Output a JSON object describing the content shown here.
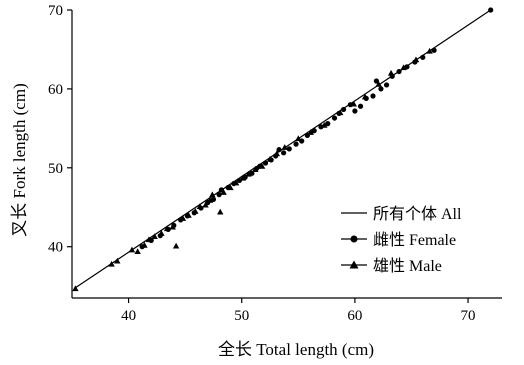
{
  "chart_data": {
    "type": "scatter",
    "title": "",
    "xlabel": "全长 Total length (cm)",
    "ylabel": "叉长 Fork length (cm)",
    "xlim": [
      35,
      73
    ],
    "ylim": [
      33.5,
      70
    ],
    "xticks": [
      40,
      50,
      60,
      70
    ],
    "yticks": [
      40,
      50,
      60,
      70
    ],
    "xtick_labels": [
      "40",
      "50",
      "60",
      "70"
    ],
    "ytick_labels": [
      "40",
      "50",
      "60",
      "70"
    ],
    "grid": false,
    "legend_position": "lower-right",
    "legend": [
      {
        "label": "所有个体 All",
        "marker": "line"
      },
      {
        "label": "雌性 Female",
        "marker": "circle"
      },
      {
        "label": "雄性 Male",
        "marker": "triangle"
      }
    ],
    "fit_line": {
      "name": "所有个体 All",
      "points": [
        [
          35.2,
          34.7
        ],
        [
          72.0,
          70.0
        ]
      ]
    },
    "series": [
      {
        "name": "雌性 Female",
        "marker": "circle",
        "points": [
          [
            41.2,
            40.0
          ],
          [
            42.0,
            40.8
          ],
          [
            42.8,
            41.4
          ],
          [
            43.5,
            42.2
          ],
          [
            44.0,
            42.7
          ],
          [
            44.6,
            43.4
          ],
          [
            45.2,
            43.9
          ],
          [
            45.8,
            44.3
          ],
          [
            46.4,
            44.9
          ],
          [
            47.0,
            45.6
          ],
          [
            47.5,
            46.0
          ],
          [
            48.0,
            46.6
          ],
          [
            48.2,
            47.2
          ],
          [
            48.8,
            47.5
          ],
          [
            49.3,
            48.0
          ],
          [
            49.8,
            48.4
          ],
          [
            50.3,
            48.8
          ],
          [
            50.9,
            49.3
          ],
          [
            51.3,
            49.9
          ],
          [
            51.6,
            50.2
          ],
          [
            52.1,
            50.6
          ],
          [
            52.6,
            51.0
          ],
          [
            53.0,
            51.5
          ],
          [
            53.3,
            52.3
          ],
          [
            53.7,
            51.9
          ],
          [
            54.2,
            52.4
          ],
          [
            54.8,
            53.0
          ],
          [
            55.3,
            53.4
          ],
          [
            55.8,
            54.1
          ],
          [
            56.4,
            54.7
          ],
          [
            57.0,
            55.2
          ],
          [
            57.6,
            55.6
          ],
          [
            58.2,
            56.3
          ],
          [
            58.6,
            56.9
          ],
          [
            59.0,
            57.4
          ],
          [
            59.6,
            58.0
          ],
          [
            60.0,
            57.2
          ],
          [
            60.5,
            57.8
          ],
          [
            61.0,
            58.8
          ],
          [
            61.6,
            59.1
          ],
          [
            61.9,
            61.0
          ],
          [
            62.3,
            60.0
          ],
          [
            62.8,
            60.5
          ],
          [
            63.3,
            61.6
          ],
          [
            63.9,
            62.2
          ],
          [
            64.6,
            62.8
          ],
          [
            65.3,
            63.4
          ],
          [
            66.0,
            64.0
          ],
          [
            67.0,
            64.9
          ],
          [
            72.0,
            70.0
          ]
        ]
      },
      {
        "name": "雄性 Male",
        "marker": "triangle",
        "points": [
          [
            35.3,
            34.7
          ],
          [
            38.5,
            37.8
          ],
          [
            39.0,
            38.2
          ],
          [
            40.3,
            39.6
          ],
          [
            40.8,
            39.4
          ],
          [
            41.4,
            40.2
          ],
          [
            41.8,
            40.9
          ],
          [
            42.3,
            41.3
          ],
          [
            42.9,
            41.7
          ],
          [
            43.4,
            42.3
          ],
          [
            43.9,
            42.5
          ],
          [
            44.2,
            40.1
          ],
          [
            44.8,
            43.6
          ],
          [
            45.3,
            44.0
          ],
          [
            45.9,
            44.5
          ],
          [
            46.3,
            45.1
          ],
          [
            46.8,
            45.3
          ],
          [
            47.2,
            45.9
          ],
          [
            47.4,
            46.6
          ],
          [
            48.1,
            44.4
          ],
          [
            48.4,
            46.9
          ],
          [
            49.0,
            47.5
          ],
          [
            49.5,
            48.1
          ],
          [
            50.1,
            48.7
          ],
          [
            50.6,
            49.2
          ],
          [
            51.2,
            49.8
          ],
          [
            51.8,
            50.2
          ],
          [
            52.5,
            51.1
          ],
          [
            53.1,
            51.8
          ],
          [
            53.8,
            52.6
          ],
          [
            55.0,
            53.7
          ],
          [
            56.1,
            54.5
          ],
          [
            57.3,
            55.4
          ],
          [
            58.7,
            57.0
          ],
          [
            59.9,
            58.1
          ],
          [
            60.9,
            59.0
          ],
          [
            62.1,
            60.6
          ],
          [
            63.2,
            62.0
          ],
          [
            64.3,
            62.7
          ],
          [
            65.4,
            63.7
          ],
          [
            66.6,
            64.8
          ]
        ]
      }
    ]
  }
}
